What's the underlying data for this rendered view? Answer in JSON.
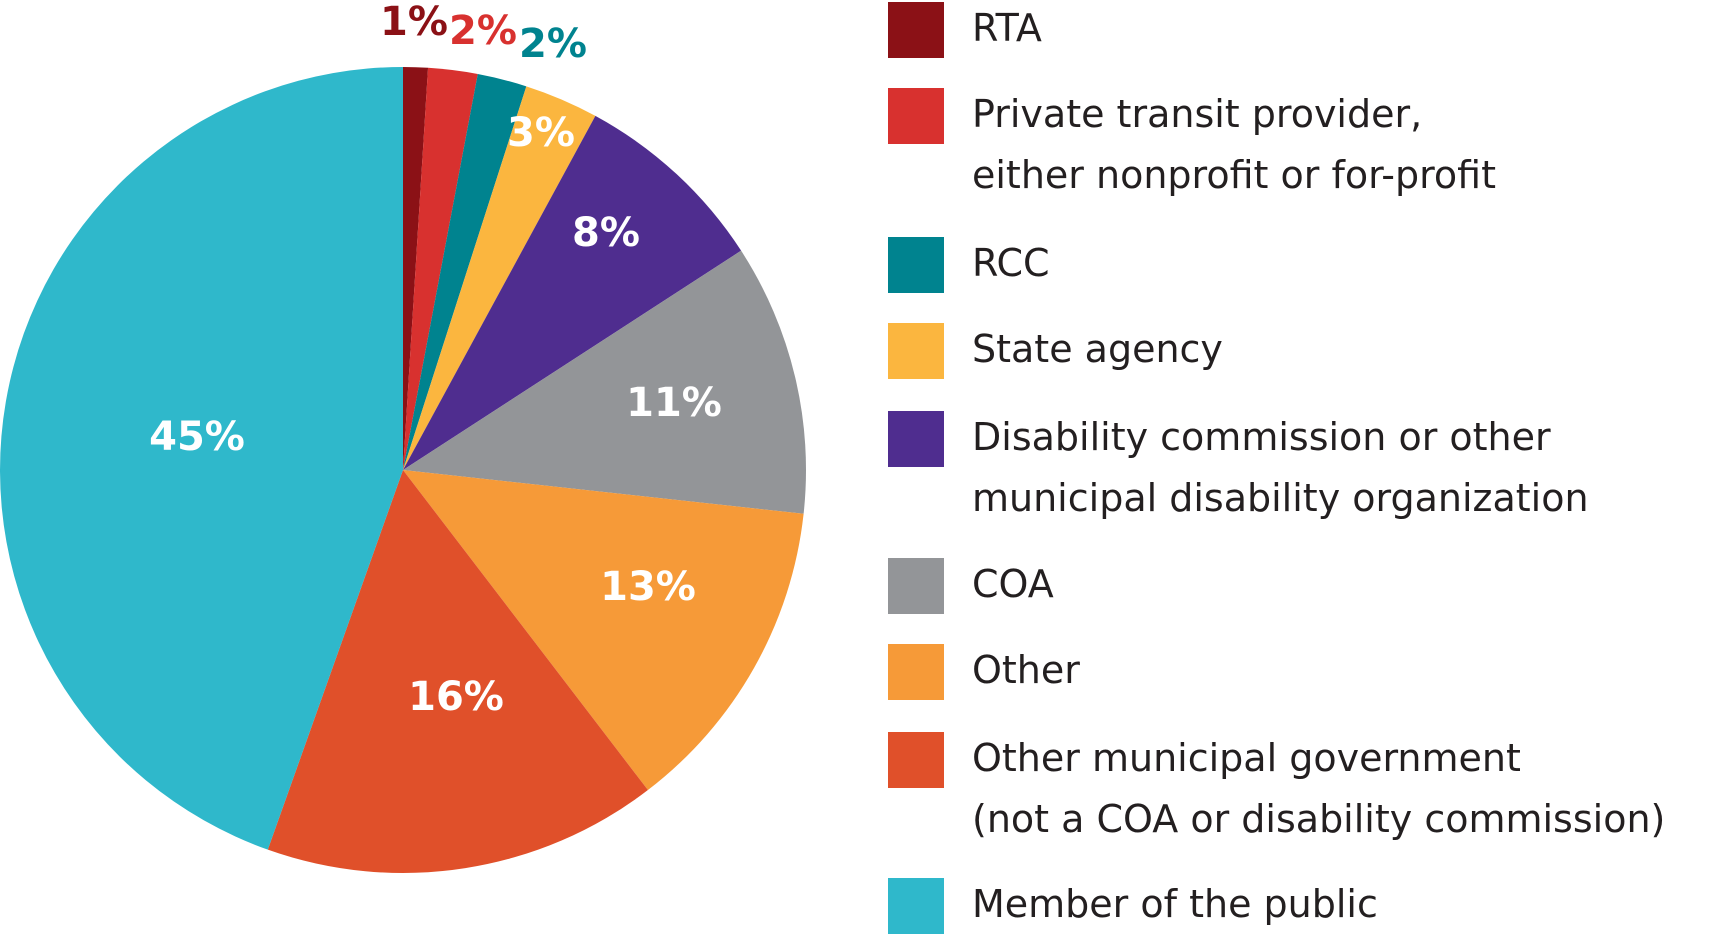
{
  "chart_data": {
    "type": "pie",
    "categories": [
      "RTA",
      "Private transit provider,\neither nonprofit or for-profit",
      "RCC",
      "State agency",
      "Disability commission or other\nmunicipal disability organization",
      "COA",
      "Other",
      "Other municipal government\n(not a COA or disability commission)",
      "Member of the public"
    ],
    "values": [
      1,
      2,
      2,
      3,
      8,
      11,
      13,
      16,
      45
    ],
    "value_labels": [
      "1%",
      "2%",
      "2%",
      "3%",
      "8%",
      "11%",
      "13%",
      "16%",
      "45%"
    ],
    "colors": [
      "#8b1116",
      "#d8312f",
      "#00838f",
      "#fbb63f",
      "#4f2d8f",
      "#939598",
      "#f69a38",
      "#e0502a",
      "#2fb8cb"
    ]
  }
}
